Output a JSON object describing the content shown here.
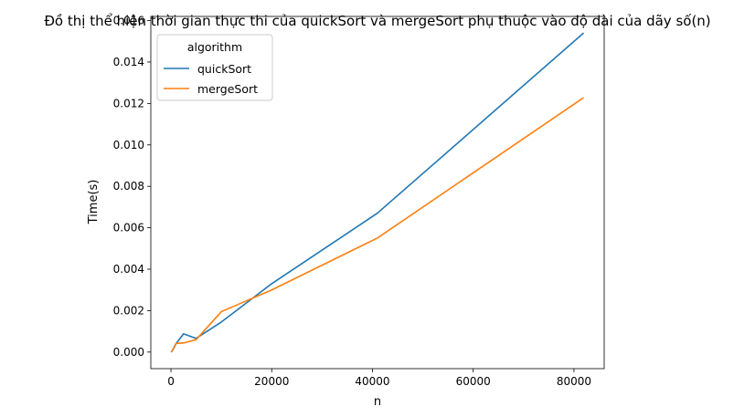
{
  "chart_data": {
    "type": "line",
    "title": "Đồ thị thể hiện thời gian thực thi của quickSort và mergeSort phụ thuộc vào độ dài của dãy số(n)",
    "xlabel": "n",
    "ylabel": "Time(s)",
    "xlim": [
      -4000,
      86000
    ],
    "ylim": [
      -0.0008,
      0.0162
    ],
    "xticks": [
      0,
      20000,
      40000,
      60000,
      80000
    ],
    "xtick_labels": [
      "0",
      "20000",
      "40000",
      "60000",
      "80000"
    ],
    "yticks": [
      0,
      0.002,
      0.004,
      0.006,
      0.008,
      0.01,
      0.012,
      0.014,
      0.016
    ],
    "ytick_labels": [
      "0.000",
      "0.002",
      "0.004",
      "0.006",
      "0.008",
      "0.010",
      "0.012",
      "0.014",
      "0.016"
    ],
    "grid": false,
    "legend": {
      "title": "algorithm",
      "placement": "top-left"
    },
    "x": [
      10,
      100,
      500,
      1000,
      2500,
      5000,
      10000,
      20000,
      40960,
      81920
    ],
    "series": [
      {
        "name": "quickSort",
        "color": "#1f77b4",
        "values": [
          0.0,
          2e-05,
          0.00015,
          0.0004,
          0.00088,
          0.00066,
          0.00145,
          0.0033,
          0.0067,
          0.0154
        ]
      },
      {
        "name": "mergeSort",
        "color": "#ff7f0e",
        "values": [
          0.0,
          2e-05,
          0.00018,
          0.00042,
          0.00044,
          0.0006,
          0.00195,
          0.003,
          0.0055,
          0.01228
        ]
      }
    ]
  }
}
